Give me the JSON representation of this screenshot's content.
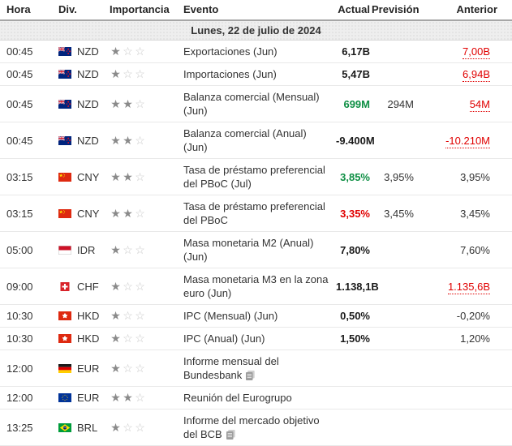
{
  "table": {
    "columns": {
      "time": "Hora",
      "currency": "Div.",
      "importance": "Importancia",
      "event": "Evento",
      "actual": "Actual",
      "forecast": "Previsión",
      "previous": "Anterior"
    },
    "date_header": "Lunes, 22 de julio de 2024",
    "rows": [
      {
        "time": "00:45",
        "flag": "new-zealand-flag",
        "currency": "NZD",
        "importance": 1,
        "event": "Exportaciones (Jun)",
        "report_icon": false,
        "actual": "6,17B",
        "actual_tone": "neutral",
        "forecast": "",
        "previous": "7,00B",
        "previous_revised": true
      },
      {
        "time": "00:45",
        "flag": "new-zealand-flag",
        "currency": "NZD",
        "importance": 1,
        "event": "Importaciones (Jun)",
        "report_icon": false,
        "actual": "5,47B",
        "actual_tone": "neutral",
        "forecast": "",
        "previous": "6,94B",
        "previous_revised": true
      },
      {
        "time": "00:45",
        "flag": "new-zealand-flag",
        "currency": "NZD",
        "importance": 2,
        "event": "Balanza comercial (Mensual) (Jun)",
        "report_icon": false,
        "actual": "699M",
        "actual_tone": "positive",
        "forecast": "294M",
        "previous": "54M",
        "previous_revised": true
      },
      {
        "time": "00:45",
        "flag": "new-zealand-flag",
        "currency": "NZD",
        "importance": 2,
        "event": "Balanza comercial (Anual) (Jun)",
        "report_icon": false,
        "actual": "-9.400M",
        "actual_tone": "neutral",
        "forecast": "",
        "previous": "-10.210M",
        "previous_revised": true
      },
      {
        "time": "03:15",
        "flag": "china-flag",
        "currency": "CNY",
        "importance": 2,
        "event": "Tasa de préstamo preferencial del PBoC (Jul)",
        "report_icon": false,
        "actual": "3,85%",
        "actual_tone": "positive",
        "forecast": "3,95%",
        "previous": "3,95%",
        "previous_revised": false
      },
      {
        "time": "03:15",
        "flag": "china-flag",
        "currency": "CNY",
        "importance": 2,
        "event": "Tasa de préstamo preferencial del PBoC",
        "report_icon": false,
        "actual": "3,35%",
        "actual_tone": "negative",
        "forecast": "3,45%",
        "previous": "3,45%",
        "previous_revised": false
      },
      {
        "time": "05:00",
        "flag": "indonesia-flag",
        "currency": "IDR",
        "importance": 1,
        "event": "Masa monetaria M2 (Anual) (Jun)",
        "report_icon": false,
        "actual": "7,80%",
        "actual_tone": "neutral",
        "forecast": "",
        "previous": "7,60%",
        "previous_revised": false
      },
      {
        "time": "09:00",
        "flag": "switzerland-flag",
        "currency": "CHF",
        "importance": 1,
        "event": "Masa monetaria M3 en la zona euro (Jun)",
        "report_icon": false,
        "actual": "1.138,1B",
        "actual_tone": "neutral",
        "forecast": "",
        "previous": "1.135,6B",
        "previous_revised": true
      },
      {
        "time": "10:30",
        "flag": "hong-kong-flag",
        "currency": "HKD",
        "importance": 1,
        "event": "IPC (Mensual) (Jun)",
        "report_icon": false,
        "actual": "0,50%",
        "actual_tone": "neutral",
        "forecast": "",
        "previous": "-0,20%",
        "previous_revised": false
      },
      {
        "time": "10:30",
        "flag": "hong-kong-flag",
        "currency": "HKD",
        "importance": 1,
        "event": "IPC (Anual) (Jun)",
        "report_icon": false,
        "actual": "1,50%",
        "actual_tone": "neutral",
        "forecast": "",
        "previous": "1,20%",
        "previous_revised": false
      },
      {
        "time": "12:00",
        "flag": "germany-flag",
        "currency": "EUR",
        "importance": 1,
        "event": "Informe mensual del Bundesbank",
        "report_icon": true,
        "actual": "",
        "actual_tone": "neutral",
        "forecast": "",
        "previous": "",
        "previous_revised": false
      },
      {
        "time": "12:00",
        "flag": "european-union-flag",
        "currency": "EUR",
        "importance": 2,
        "event": "Reunión del Eurogrupo",
        "report_icon": false,
        "actual": "",
        "actual_tone": "neutral",
        "forecast": "",
        "previous": "",
        "previous_revised": false
      },
      {
        "time": "13:25",
        "flag": "brazil-flag",
        "currency": "BRL",
        "importance": 1,
        "event": "Informe del mercado objetivo del BCB",
        "report_icon": true,
        "actual": "",
        "actual_tone": "neutral",
        "forecast": "",
        "previous": "",
        "previous_revised": false
      }
    ],
    "importance_max": 3
  },
  "colors": {
    "positive_green": "#0e8f44",
    "negative_red": "#e00000",
    "neutral_value": "#1a1a1a",
    "revised_red": "#e00000"
  },
  "glyphs": {
    "star_filled": "★",
    "star_empty": "☆"
  }
}
